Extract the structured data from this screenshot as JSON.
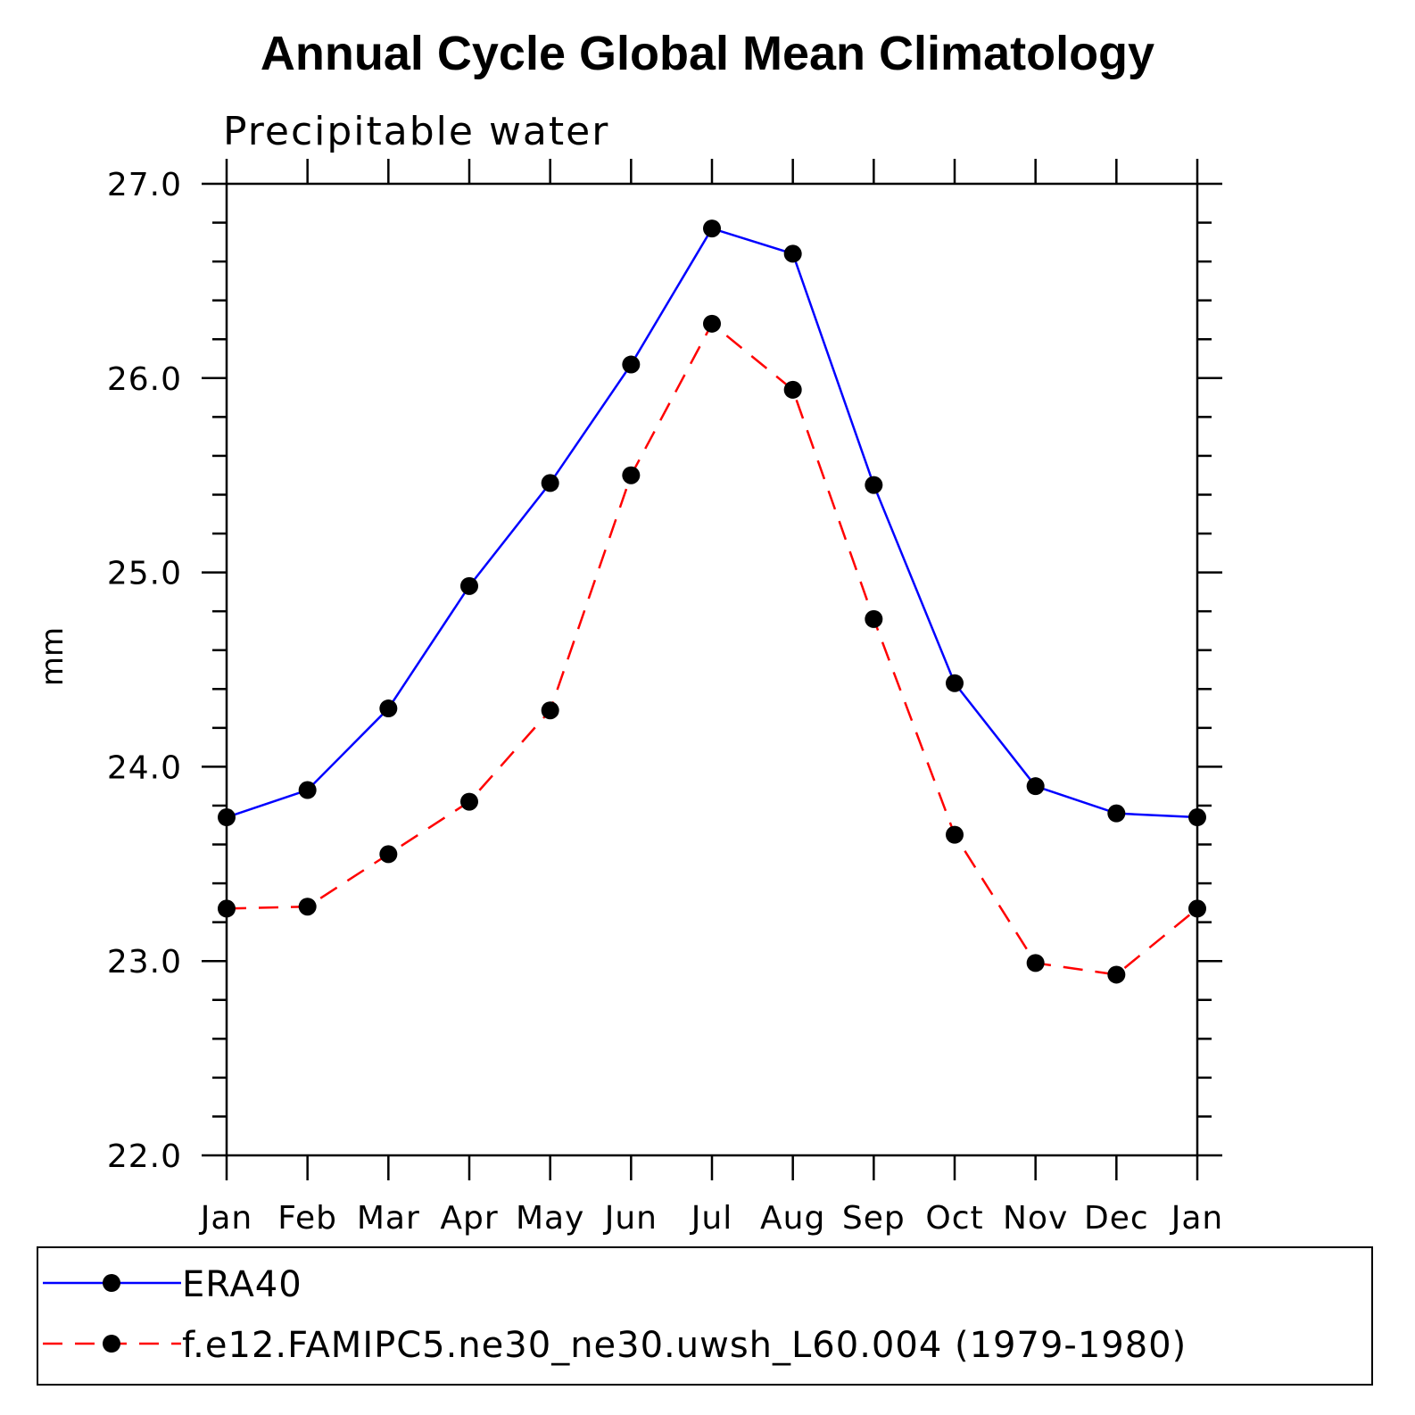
{
  "chart_data": {
    "type": "line",
    "title": "Annual Cycle Global Mean Climatology",
    "subtitle": "Precipitable water",
    "xlabel": "",
    "ylabel": "mm",
    "categories": [
      "Jan",
      "Feb",
      "Mar",
      "Apr",
      "May",
      "Jun",
      "Jul",
      "Aug",
      "Sep",
      "Oct",
      "Nov",
      "Dec",
      "Jan"
    ],
    "ylim": [
      22.0,
      27.0
    ],
    "yticks": [
      "22.0",
      "23.0",
      "24.0",
      "25.0",
      "26.0",
      "27.0"
    ],
    "yminor_step": 0.2,
    "grid": false,
    "legend_position": "bottom",
    "series": [
      {
        "name": "ERA40",
        "color": "#0000ff",
        "dash": "solid",
        "marker": "filled-circle",
        "values": [
          23.74,
          23.88,
          24.3,
          24.93,
          25.46,
          26.07,
          26.77,
          26.64,
          25.45,
          24.43,
          23.9,
          23.76,
          23.74
        ]
      },
      {
        "name": "f.e12.FAMIPC5.ne30_ne30.uwsh_L60.004 (1979-1980)",
        "color": "#ff0000",
        "dash": "dashed",
        "marker": "filled-circle",
        "values": [
          23.27,
          23.28,
          23.55,
          23.82,
          24.29,
          25.5,
          26.28,
          25.94,
          24.76,
          23.65,
          22.99,
          22.93,
          23.27
        ]
      }
    ]
  }
}
